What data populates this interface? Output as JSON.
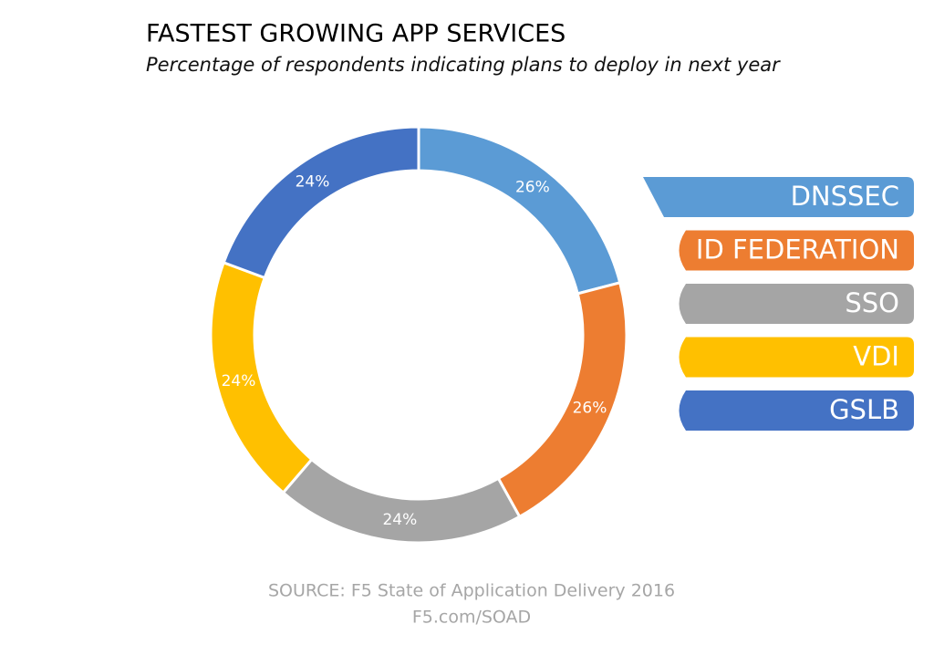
{
  "chart_data": {
    "type": "pie",
    "title": "FASTEST GROWING APP SERVICES",
    "subtitle": "Percentage of respondents indicating plans to deploy in next year",
    "categories": [
      "DNSSEC",
      "ID FEDERATION",
      "SSO",
      "VDI",
      "GSLB"
    ],
    "values": [
      26,
      26,
      24,
      24,
      24
    ],
    "value_labels": [
      "26%",
      "26%",
      "24%",
      "24%",
      "24%"
    ],
    "colors": [
      "#5b9bd5",
      "#ed7d31",
      "#a5a5a5",
      "#ffc000",
      "#4472c4"
    ],
    "legend": "right",
    "annotations": [
      "SOURCE: F5 State of Application Delivery 2016",
      "F5.com/SOAD"
    ]
  }
}
